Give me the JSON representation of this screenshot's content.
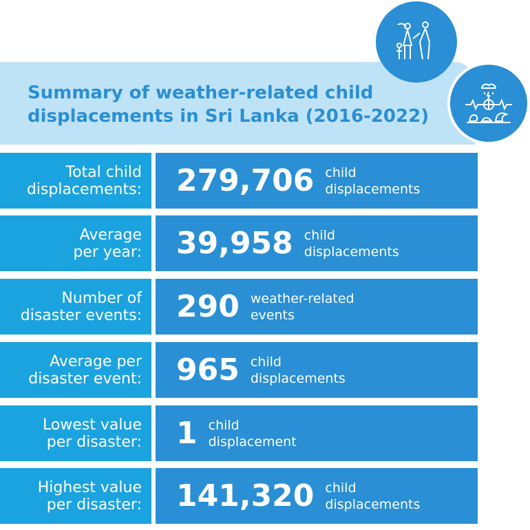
{
  "title": {
    "line1": "Summary of weather-related child",
    "line2": "displacements in Sri Lanka (2016-2022)"
  },
  "icons": [
    "family-displacement-icon",
    "weather-disaster-icon"
  ],
  "colors": {
    "header_bg": "#bfe3f6",
    "label_bg": "#1ba3e0",
    "value_bg": "#2a8fd4"
  },
  "rows": [
    {
      "label1": "Total child",
      "label2": "displacements:",
      "value": "279,706",
      "unit1": "child",
      "unit2": "displacements"
    },
    {
      "label1": "Average",
      "label2": "per year:",
      "value": "39,958",
      "unit1": "child",
      "unit2": "displacements"
    },
    {
      "label1": "Number of",
      "label2": "disaster events:",
      "value": "290",
      "unit1": "weather-related",
      "unit2": "events"
    },
    {
      "label1": "Average per",
      "label2": "disaster event:",
      "value": "965",
      "unit1": "child",
      "unit2": "displacements"
    },
    {
      "label1": "Lowest value",
      "label2": "per disaster:",
      "value": "1",
      "unit1": "child",
      "unit2": "displacement"
    },
    {
      "label1": "Highest value",
      "label2": "per disaster:",
      "value": "141,320",
      "unit1": "child",
      "unit2": "displacements"
    }
  ]
}
